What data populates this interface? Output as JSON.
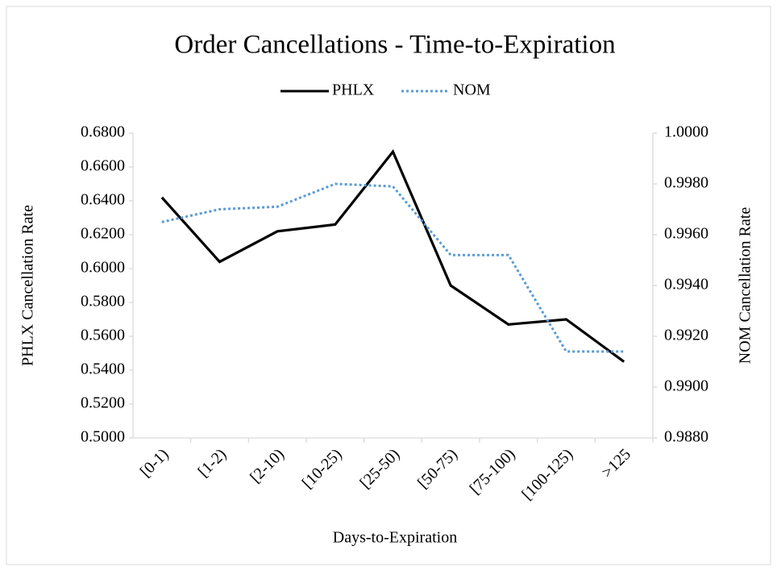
{
  "chart_data": {
    "type": "line",
    "title": "Order Cancellations - Time-to-Expiration",
    "x_label": "Days-to-Expiration",
    "y_label": "PHLX Cancellation Rate",
    "y2_label": "NOM Cancellation Rate",
    "categories": [
      "[0-1)",
      "[1-2)",
      "[2-10)",
      "[10-25)",
      "[25-50)",
      "[50-75)",
      "[75-100)",
      "[100-125)",
      ">125"
    ],
    "series": [
      {
        "name": "PHLX",
        "color": "#000000",
        "dash": "solid",
        "axis": "y",
        "values": [
          0.642,
          0.604,
          0.622,
          0.626,
          0.669,
          0.59,
          0.567,
          0.57,
          0.545
        ]
      },
      {
        "name": "NOM",
        "color": "#5b9bd5",
        "dash": "dotted",
        "axis": "y2",
        "values": [
          0.9965,
          0.997,
          0.9971,
          0.998,
          0.9979,
          0.9952,
          0.9952,
          0.9914,
          0.9914
        ]
      }
    ],
    "ylim": [
      0.5,
      0.68
    ],
    "yticks": [
      {
        "value": 0.5,
        "label": "0.5000"
      },
      {
        "value": 0.52,
        "label": "0.5200"
      },
      {
        "value": 0.54,
        "label": "0.5400"
      },
      {
        "value": 0.56,
        "label": "0.5600"
      },
      {
        "value": 0.58,
        "label": "0.5800"
      },
      {
        "value": 0.6,
        "label": "0.6000"
      },
      {
        "value": 0.62,
        "label": "0.6200"
      },
      {
        "value": 0.64,
        "label": "0.6400"
      },
      {
        "value": 0.66,
        "label": "0.6600"
      },
      {
        "value": 0.68,
        "label": "0.6800"
      }
    ],
    "y2lim": [
      0.988,
      1.0
    ],
    "y2ticks": [
      {
        "value": 0.988,
        "label": "0.9880"
      },
      {
        "value": 0.99,
        "label": "0.9900"
      },
      {
        "value": 0.992,
        "label": "0.9920"
      },
      {
        "value": 0.994,
        "label": "0.9940"
      },
      {
        "value": 0.996,
        "label": "0.9960"
      },
      {
        "value": 0.998,
        "label": "0.9980"
      },
      {
        "value": 1.0,
        "label": "1.0000"
      }
    ],
    "legend": "top",
    "grid": false
  }
}
